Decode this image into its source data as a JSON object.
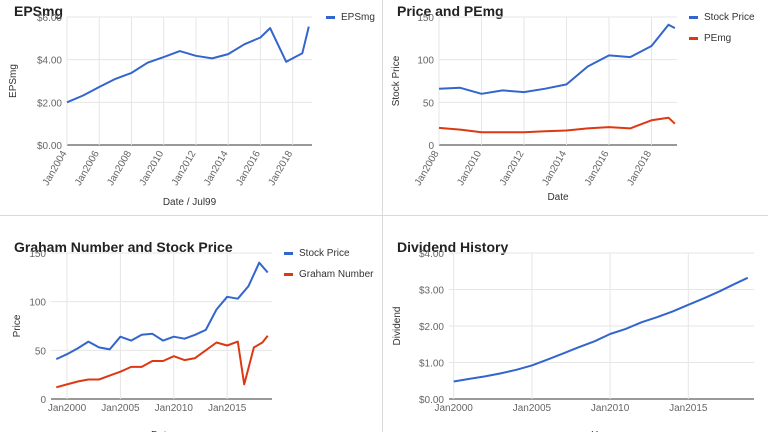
{
  "colors": {
    "blue": "#3366cc",
    "red": "#dc3912",
    "grid": "#e6e6e6",
    "axis": "#333333",
    "tick": "#666666"
  },
  "chart_data": [
    {
      "id": "eps",
      "type": "line",
      "title": "EPSmg",
      "xlabel": "Date / Jul99",
      "ylabel": "EPSmg",
      "x_range": [
        2004,
        2019.2
      ],
      "ylim": [
        0,
        6
      ],
      "y_ticks": [
        0,
        2,
        4,
        6
      ],
      "y_tick_labels": [
        "$0.00",
        "$2.00",
        "$4.00",
        "$6.00"
      ],
      "x_ticks": [
        2004,
        2006,
        2008,
        2010,
        2012,
        2014,
        2016,
        2018
      ],
      "x_tick_labels": [
        "Jan2004",
        "Jan2006",
        "Jan2008",
        "Jan2010",
        "Jan2012",
        "Jan2014",
        "Jan2016",
        "Jan2018"
      ],
      "x_tick_rotation": -60,
      "legend_position": "top-right",
      "grid": true,
      "series": [
        {
          "name": "EPSmg",
          "color": "#3366cc",
          "x": [
            2004,
            2005,
            2006,
            2007,
            2008,
            2009,
            2010,
            2011,
            2012,
            2013,
            2014,
            2015,
            2016,
            2016.6,
            2017.6,
            2018.6,
            2019.0
          ],
          "y": [
            2.0,
            2.32,
            2.72,
            3.1,
            3.38,
            3.86,
            4.12,
            4.4,
            4.18,
            4.06,
            4.26,
            4.72,
            5.04,
            5.48,
            3.9,
            4.3,
            5.55
          ]
        }
      ]
    },
    {
      "id": "pe",
      "type": "line",
      "title": "Price and PEmg",
      "xlabel": "Date",
      "ylabel": "Stock Price",
      "x_range": [
        2008,
        2019.2
      ],
      "ylim": [
        0,
        150
      ],
      "y_ticks": [
        0,
        50,
        100,
        150
      ],
      "y_tick_labels": [
        "0",
        "50",
        "100",
        "150"
      ],
      "x_ticks": [
        2008,
        2010,
        2012,
        2014,
        2016,
        2018
      ],
      "x_tick_labels": [
        "Jan2008",
        "Jan2010",
        "Jan2012",
        "Jan2014",
        "Jan2016",
        "Jan2018"
      ],
      "x_tick_rotation": -60,
      "legend_position": "top-right",
      "grid": true,
      "series": [
        {
          "name": "Stock Price",
          "color": "#3366cc",
          "x": [
            2008,
            2009,
            2010,
            2011,
            2012,
            2013,
            2014,
            2015,
            2016,
            2017,
            2018,
            2018.8,
            2019.1
          ],
          "y": [
            66,
            67,
            60,
            64,
            62,
            66,
            71,
            92,
            105,
            103,
            116,
            141,
            137
          ]
        },
        {
          "name": "PEmg",
          "color": "#dc3912",
          "x": [
            2008,
            2009,
            2010,
            2011,
            2012,
            2013,
            2014,
            2015,
            2016,
            2017,
            2018,
            2018.8,
            2019.1
          ],
          "y": [
            20,
            18,
            15,
            15,
            15,
            16,
            17,
            19.5,
            21,
            19.5,
            29,
            32,
            25
          ]
        }
      ]
    },
    {
      "id": "graham",
      "type": "line",
      "title": "Graham Number and Stock Price",
      "xlabel": "Date",
      "ylabel": "Price",
      "x_range": [
        1998.5,
        2019.2
      ],
      "ylim": [
        0,
        150
      ],
      "y_ticks": [
        0,
        50,
        100,
        150
      ],
      "y_tick_labels": [
        "0",
        "50",
        "100",
        "150"
      ],
      "x_ticks": [
        2000,
        2005,
        2010,
        2015
      ],
      "x_tick_labels": [
        "Jan2000",
        "Jan2005",
        "Jan2010",
        "Jan2015"
      ],
      "x_tick_rotation": 0,
      "legend_position": "top-right",
      "grid": true,
      "series": [
        {
          "name": "Stock Price",
          "color": "#3366cc",
          "x": [
            1999,
            2000,
            2001,
            2002,
            2003,
            2004,
            2005,
            2006,
            2007,
            2008,
            2009,
            2010,
            2011,
            2012,
            2013,
            2014,
            2015,
            2016,
            2017,
            2018,
            2018.8
          ],
          "y": [
            41,
            46,
            52,
            59,
            53,
            51,
            64,
            60,
            66,
            67,
            60,
            64,
            62,
            66,
            71,
            92,
            105,
            103,
            116,
            140,
            130
          ]
        },
        {
          "name": "Graham Number",
          "color": "#dc3912",
          "x": [
            1999,
            2000,
            2001,
            2002,
            2003,
            2004,
            2005,
            2006,
            2007,
            2008,
            2009,
            2010,
            2011,
            2012,
            2013,
            2014,
            2015,
            2016,
            2016.6,
            2017.5,
            2018.3,
            2018.8
          ],
          "y": [
            12,
            15,
            18,
            20,
            20,
            24,
            28,
            33,
            33,
            39,
            39,
            44,
            40,
            42,
            50,
            58,
            55,
            59,
            15,
            53,
            58,
            65
          ]
        }
      ]
    },
    {
      "id": "dividend",
      "type": "line",
      "title": "Dividend History",
      "xlabel": "Year",
      "ylabel": "Dividend",
      "x_range": [
        1999.7,
        2019.2
      ],
      "ylim": [
        0,
        4
      ],
      "y_ticks": [
        0,
        1,
        2,
        3,
        4
      ],
      "y_tick_labels": [
        "$0.00",
        "$1.00",
        "$2.00",
        "$3.00",
        "$4.00"
      ],
      "x_ticks": [
        2000,
        2005,
        2010,
        2015
      ],
      "x_tick_labels": [
        "Jan2000",
        "Jan2005",
        "Jan2010",
        "Jan2015"
      ],
      "x_tick_rotation": 0,
      "legend_position": "none",
      "grid": true,
      "series": [
        {
          "name": "",
          "color": "#3366cc",
          "x": [
            2000,
            2001,
            2002,
            2003,
            2004,
            2005,
            2006,
            2007,
            2008,
            2009,
            2010,
            2011,
            2012,
            2013,
            2014,
            2015,
            2016,
            2017,
            2018,
            2018.8
          ],
          "y": [
            0.48,
            0.55,
            0.62,
            0.7,
            0.8,
            0.92,
            1.08,
            1.25,
            1.42,
            1.58,
            1.78,
            1.92,
            2.1,
            2.24,
            2.4,
            2.58,
            2.76,
            2.95,
            3.16,
            3.32
          ]
        }
      ]
    }
  ]
}
